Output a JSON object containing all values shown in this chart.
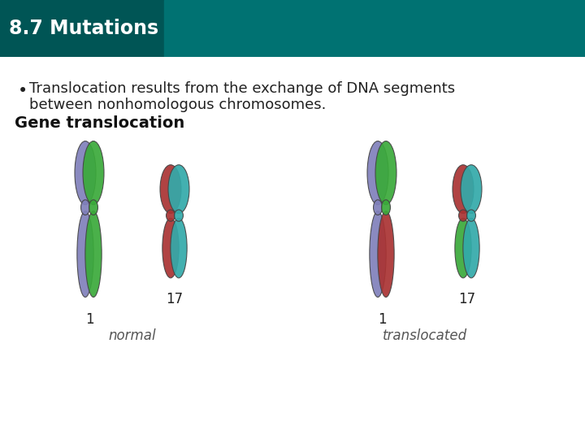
{
  "title": "8.7 Mutations",
  "title_bg_start": "#005c5c",
  "title_bg_end": "#007a7a",
  "title_text_color": "#ffffff",
  "title_fontsize": 17,
  "slide_bg_color": "#ffffff",
  "bullet_text_line1": "Translocation results from the exchange of DNA segments",
  "bullet_text_line2": "between nonhomologous chromosomes.",
  "bullet_fontsize": 13,
  "bullet_text_color": "#222222",
  "diagram_label": "Gene translocation",
  "diagram_label_fontsize": 14,
  "chr_labels": [
    "1",
    "17",
    "1",
    "17"
  ],
  "group_labels": [
    "normal",
    "translocated"
  ],
  "label_fontsize": 12,
  "group_label_fontsize": 12,
  "purple_color": "#8080bb",
  "green_color": "#3aaa3a",
  "red_color": "#aa3333",
  "teal_color": "#33aaaa"
}
